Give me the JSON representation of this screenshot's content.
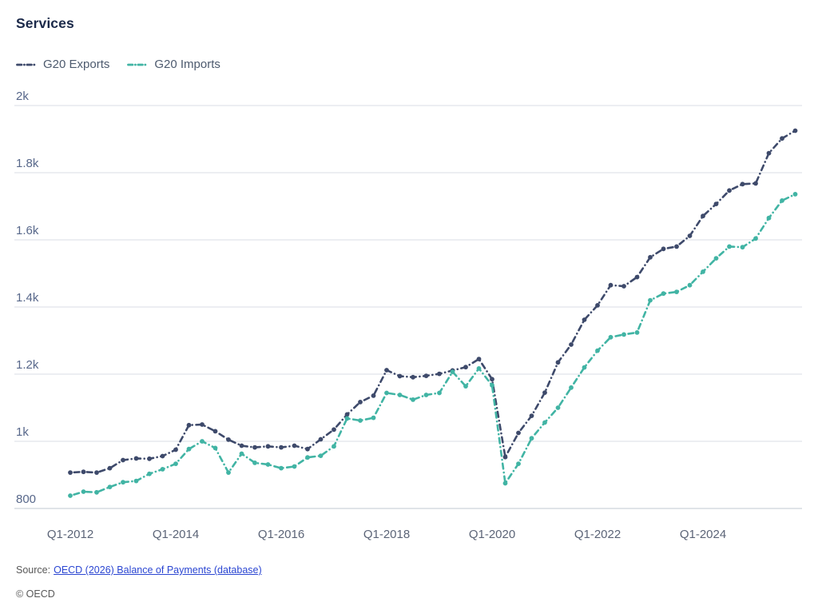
{
  "title": "Services",
  "legend": [
    {
      "label": "G20 Exports",
      "color": "#3e4a6b"
    },
    {
      "label": "G20 Imports",
      "color": "#41b4a4"
    }
  ],
  "footer": {
    "source_prefix": "Source:",
    "source_link_text": "OECD (2026) Balance of Payments (database)",
    "copyright": "© OECD"
  },
  "chart_data": {
    "type": "line",
    "title": "Services",
    "grid": "horizontal",
    "legend_position": "top-left",
    "ylim": [
      800,
      2000
    ],
    "y_tick_labels": [
      "2k",
      "1.8k",
      "1.6k",
      "1.4k",
      "1.2k",
      "1k",
      "800"
    ],
    "grid_values": [
      2000,
      1800,
      1600,
      1400,
      1200,
      1000,
      800
    ],
    "x_tick_labels": [
      "Q1-2012",
      "Q1-2014",
      "Q1-2016",
      "Q1-2018",
      "Q1-2020",
      "Q1-2022",
      "Q1-2024"
    ],
    "x": [
      "Q1-2012",
      "Q2-2012",
      "Q3-2012",
      "Q4-2012",
      "Q1-2013",
      "Q2-2013",
      "Q3-2013",
      "Q4-2013",
      "Q1-2014",
      "Q2-2014",
      "Q3-2014",
      "Q4-2014",
      "Q1-2015",
      "Q2-2015",
      "Q3-2015",
      "Q4-2015",
      "Q1-2016",
      "Q2-2016",
      "Q3-2016",
      "Q4-2016",
      "Q1-2017",
      "Q2-2017",
      "Q3-2017",
      "Q4-2017",
      "Q1-2018",
      "Q2-2018",
      "Q3-2018",
      "Q4-2018",
      "Q1-2019",
      "Q2-2019",
      "Q3-2019",
      "Q4-2019",
      "Q1-2020",
      "Q2-2020",
      "Q3-2020",
      "Q4-2020",
      "Q1-2021",
      "Q2-2021",
      "Q3-2021",
      "Q4-2021",
      "Q1-2022",
      "Q2-2022",
      "Q3-2022",
      "Q4-2022",
      "Q1-2023",
      "Q2-2023",
      "Q3-2023",
      "Q4-2023",
      "Q1-2024",
      "Q2-2024",
      "Q3-2024",
      "Q4-2024",
      "Q1-2025",
      "Q2-2025",
      "Q3-2025",
      "Q4-2025"
    ],
    "series": [
      {
        "name": "G20 Exports",
        "color": "#3e4a6b",
        "values": [
          907,
          909,
          907,
          920,
          944,
          949,
          948,
          956,
          975,
          1048,
          1050,
          1030,
          1005,
          987,
          982,
          985,
          982,
          987,
          977,
          1006,
          1035,
          1080,
          1117,
          1136,
          1212,
          1194,
          1191,
          1195,
          1201,
          1211,
          1221,
          1245,
          1185,
          953,
          1025,
          1076,
          1145,
          1235,
          1288,
          1362,
          1405,
          1465,
          1462,
          1489,
          1548,
          1573,
          1580,
          1612,
          1671,
          1707,
          1747,
          1766,
          1768,
          1858,
          1902,
          1925
        ]
      },
      {
        "name": "G20 Imports",
        "color": "#41b4a4",
        "values": [
          838,
          850,
          848,
          864,
          878,
          882,
          903,
          917,
          933,
          977,
          1000,
          980,
          907,
          963,
          936,
          931,
          920,
          925,
          952,
          957,
          985,
          1068,
          1062,
          1070,
          1144,
          1138,
          1124,
          1138,
          1144,
          1207,
          1164,
          1217,
          1167,
          875,
          933,
          1009,
          1056,
          1100,
          1160,
          1220,
          1270,
          1310,
          1318,
          1324,
          1420,
          1440,
          1445,
          1465,
          1505,
          1545,
          1580,
          1578,
          1604,
          1665,
          1717,
          1736
        ]
      }
    ]
  }
}
